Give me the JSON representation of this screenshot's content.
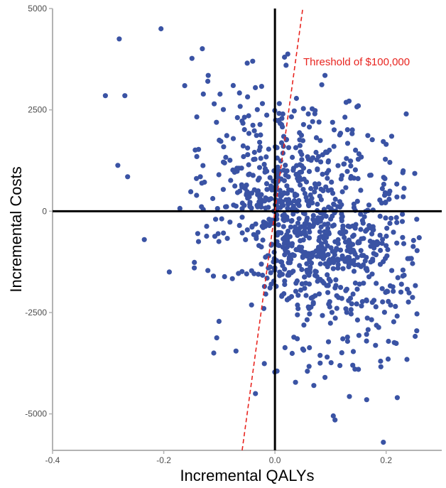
{
  "chart_data": {
    "type": "scatter",
    "title": "",
    "xlabel": "Incremental QALYs",
    "ylabel": "Incremental Costs",
    "xlim": [
      -0.4,
      0.3
    ],
    "ylim": [
      -5900,
      5000
    ],
    "x_ticks": [
      -0.4,
      -0.2,
      0.0,
      0.2
    ],
    "x_tick_labels": [
      "-0.4",
      "-0.2",
      "0.0",
      "0.2"
    ],
    "y_ticks": [
      -5000,
      -2500,
      0,
      2500,
      5000
    ],
    "y_tick_labels": [
      "-5000",
      "-2500",
      "0",
      "2500",
      "5000"
    ],
    "grid": false,
    "reference_lines": {
      "x": 0,
      "y": 0,
      "color": "#000000"
    },
    "threshold": {
      "label": "Threshold of $100,000",
      "slope": 100000,
      "x_range": [
        -0.059,
        0.05
      ],
      "color": "#e8241f",
      "style": "dashed"
    },
    "point_color": "#3a53a4",
    "point_count_displayed": 1000,
    "distribution": {
      "note": "Probabilistic sensitivity analysis scatter; bulk of points in lower-right quadrant",
      "x_mean": 0.07,
      "x_sd": 0.09,
      "y_mean": -350,
      "y_sd": 1500,
      "correlation": -0.35
    },
    "highlighted_points": [
      [
        -0.28,
        4250
      ],
      [
        -0.205,
        4500
      ],
      [
        -0.04,
        3700
      ],
      [
        0.02,
        3600
      ],
      [
        0.09,
        3350
      ],
      [
        -0.305,
        2850
      ],
      [
        -0.27,
        2850
      ],
      [
        -0.12,
        3350
      ],
      [
        -0.075,
        3100
      ],
      [
        0.15,
        2600
      ],
      [
        -0.265,
        850
      ],
      [
        -0.235,
        -700
      ],
      [
        -0.19,
        -1500
      ],
      [
        -0.145,
        -1400
      ],
      [
        -0.11,
        -3500
      ],
      [
        -0.07,
        -3450
      ],
      [
        -0.035,
        -4500
      ],
      [
        -0.02,
        -2400
      ],
      [
        0.07,
        -4300
      ],
      [
        0.105,
        -5050
      ],
      [
        0.108,
        -5150
      ],
      [
        0.165,
        -4650
      ],
      [
        0.195,
        -5700
      ],
      [
        0.22,
        -4600
      ],
      [
        0.255,
        -2950
      ],
      [
        0.255,
        -200
      ],
      [
        0.23,
        -1600
      ],
      [
        0.23,
        950
      ],
      [
        0.2,
        1650
      ],
      [
        0.21,
        1850
      ],
      [
        0.19,
        -3700
      ],
      [
        0.14,
        -3800
      ],
      [
        0.05,
        -3400
      ],
      [
        0.09,
        -4100
      ],
      [
        0.06,
        2400
      ]
    ]
  }
}
